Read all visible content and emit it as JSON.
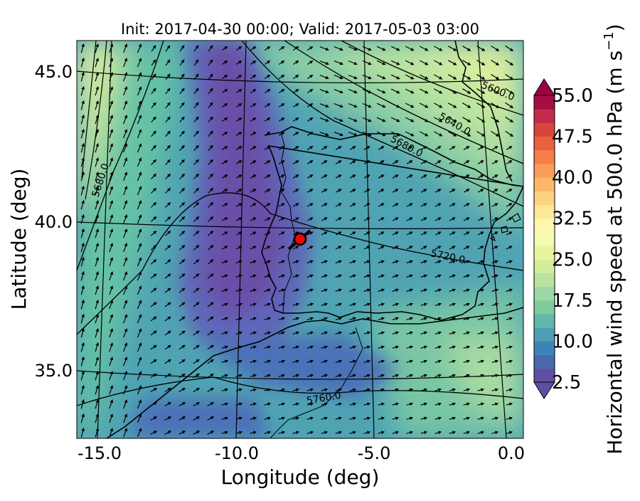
{
  "chart_data": {
    "type": "contour-map",
    "title": "Init: 2017-04-30 00:00; Valid: 2017-05-03 03:00",
    "xlabel": "Longitude (deg)",
    "ylabel": "Latitude (deg)",
    "xlim": [
      -16,
      0.2
    ],
    "ylim": [
      32.5,
      46
    ],
    "x_ticks": [
      {
        "value": -15,
        "label": "-15.0"
      },
      {
        "value": -10,
        "label": "-10.0"
      },
      {
        "value": -5,
        "label": "-5.0"
      },
      {
        "value": 0,
        "label": "0.0"
      }
    ],
    "y_ticks": [
      {
        "value": 35,
        "label": "35.0"
      },
      {
        "value": 40,
        "label": "40.0"
      },
      {
        "value": 45,
        "label": "45.0"
      }
    ],
    "colorbar": {
      "label_main": "Horizontal wind speed at 500.0 hPa (m s",
      "label_exp": "−1",
      "label_close": ")",
      "min": 2.5,
      "max": 55,
      "step": 2.5,
      "extend": "both",
      "tick_labels": [
        "2.5",
        "10.0",
        "17.5",
        "25.0",
        "32.5",
        "40.0",
        "47.5",
        "55.0"
      ]
    },
    "geopotential_contours": [
      {
        "label": "5600.0",
        "level": 5600
      },
      {
        "label": "5640.0",
        "level": 5640
      },
      {
        "label": "5680.0",
        "level": 5680
      },
      {
        "label": "5680.0",
        "level": 5680
      },
      {
        "label": "5720.0",
        "level": 5720
      },
      {
        "label": "5760.0",
        "level": 5760
      }
    ],
    "marker": {
      "lon": -7.6,
      "lat": 39.35,
      "color": "#ff0000"
    }
  }
}
